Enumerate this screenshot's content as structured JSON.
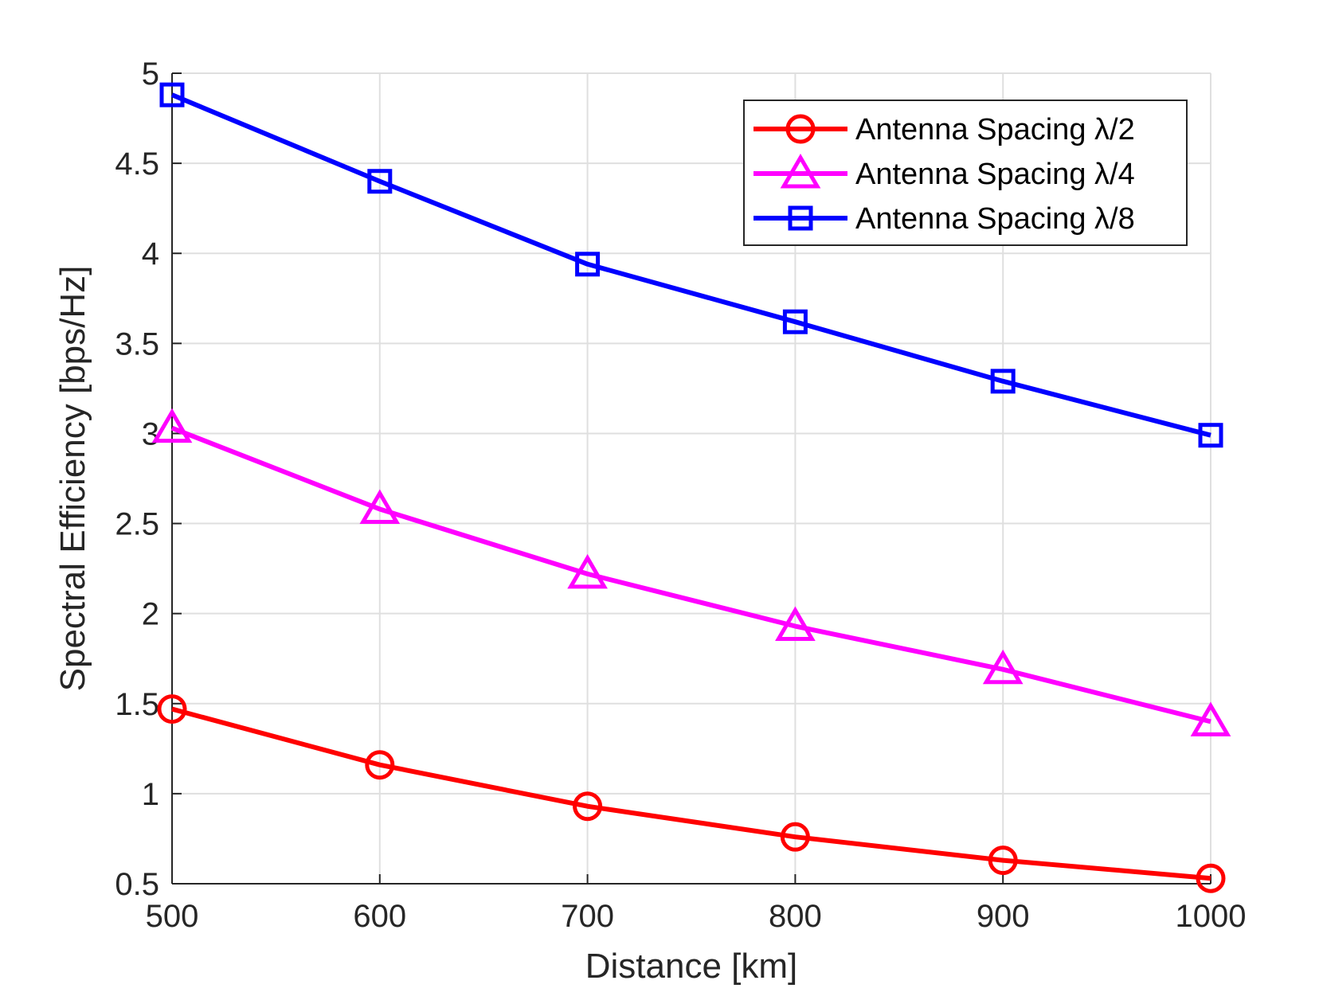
{
  "chart_data": {
    "type": "line",
    "title": "",
    "xlabel": "Distance [km]",
    "ylabel": "Spectral Efficiency [bps/Hz]",
    "x": [
      500,
      600,
      700,
      800,
      900,
      1000
    ],
    "xlim": [
      500,
      1000
    ],
    "ylim": [
      0.5,
      5
    ],
    "xticks": [
      500,
      600,
      700,
      800,
      900,
      1000
    ],
    "yticks": [
      0.5,
      1,
      1.5,
      2,
      2.5,
      3,
      3.5,
      4,
      4.5,
      5
    ],
    "xtick_labels": [
      "500",
      "600",
      "700",
      "800",
      "900",
      "1000"
    ],
    "ytick_labels": [
      "0.5",
      "1",
      "1.5",
      "2",
      "2.5",
      "3",
      "3.5",
      "4",
      "4.5",
      "5"
    ],
    "grid": true,
    "legend_position": "top-right",
    "series": [
      {
        "name": "Antenna Spacing λ/2",
        "color": "#ff0000",
        "marker": "circle",
        "values": [
          1.47,
          1.16,
          0.93,
          0.76,
          0.63,
          0.53
        ]
      },
      {
        "name": "Antenna Spacing λ/4",
        "color": "#ff00ff",
        "marker": "triangle",
        "values": [
          3.03,
          2.58,
          2.22,
          1.93,
          1.69,
          1.4
        ]
      },
      {
        "name": "Antenna Spacing λ/8",
        "color": "#0000ff",
        "marker": "square",
        "values": [
          4.88,
          4.4,
          3.94,
          3.62,
          3.29,
          2.99
        ]
      }
    ]
  }
}
